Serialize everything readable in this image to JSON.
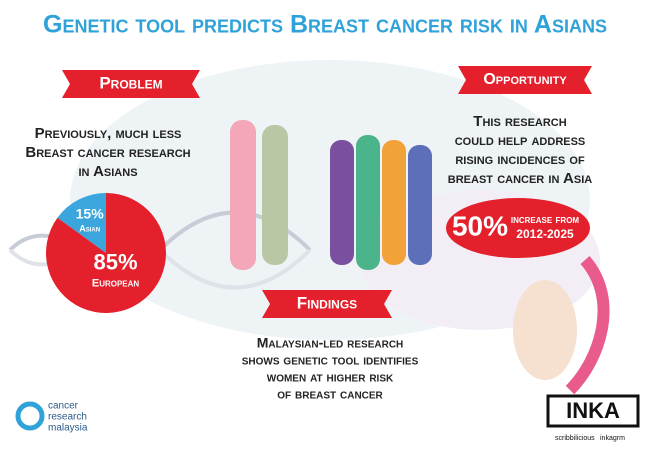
{
  "title": "Genetic tool predicts Breast cancer risk in Asians",
  "problem": {
    "heading": "Problem",
    "lines": [
      "Previously, much less",
      "Breast cancer research",
      "in Asians"
    ]
  },
  "chart_data": {
    "type": "pie",
    "categories": [
      "Asian",
      "European"
    ],
    "values": [
      15,
      85
    ],
    "value_labels": [
      "15%",
      "85%"
    ],
    "colors": [
      "#3aa6dd",
      "#e3202b"
    ]
  },
  "findings": {
    "heading": "Findings",
    "lines": [
      "Malaysian-led research",
      "shows genetic tool identifies",
      "women at higher risk",
      "of breast cancer"
    ]
  },
  "opportunity": {
    "heading": "Opportunity",
    "lines": [
      "This research",
      "could help address",
      "rising incidences of",
      "breast cancer in Asia"
    ],
    "stat": "50%",
    "stat_note_lines": [
      "increase from",
      "2012-2025"
    ]
  },
  "logos": {
    "crm_lines": [
      "cancer",
      "research",
      "malaysia"
    ],
    "inka": "INKA",
    "social": [
      "scribbilicious",
      "inkagrm"
    ]
  }
}
